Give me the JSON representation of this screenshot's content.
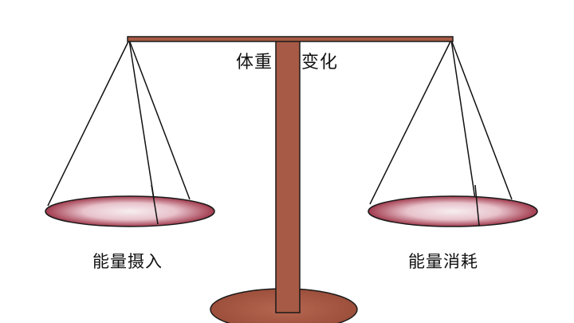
{
  "title": {
    "part1": "体重",
    "part2": "变化"
  },
  "pans": {
    "left_label": "能量摄入",
    "right_label": "能量消耗"
  },
  "colors": {
    "post": "#a75a45",
    "post_outline": "#1a1a1a",
    "pan_fill_edge": "#a13a4d",
    "pan_fill_center": "#f7eef1",
    "string": "#111111",
    "background": "#ffffff"
  }
}
